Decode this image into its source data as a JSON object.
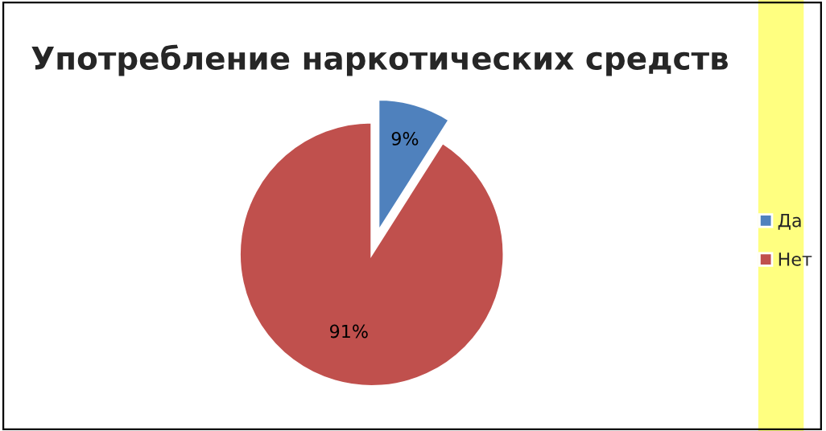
{
  "chart_data": {
    "type": "pie",
    "title": "Употребление наркотических средств",
    "categories": [
      "Да",
      "Нет"
    ],
    "values": [
      9,
      91
    ],
    "colors": [
      "#4f81bd",
      "#c0504d"
    ],
    "value_labels": [
      "9%",
      "91%"
    ],
    "legend": "right"
  }
}
